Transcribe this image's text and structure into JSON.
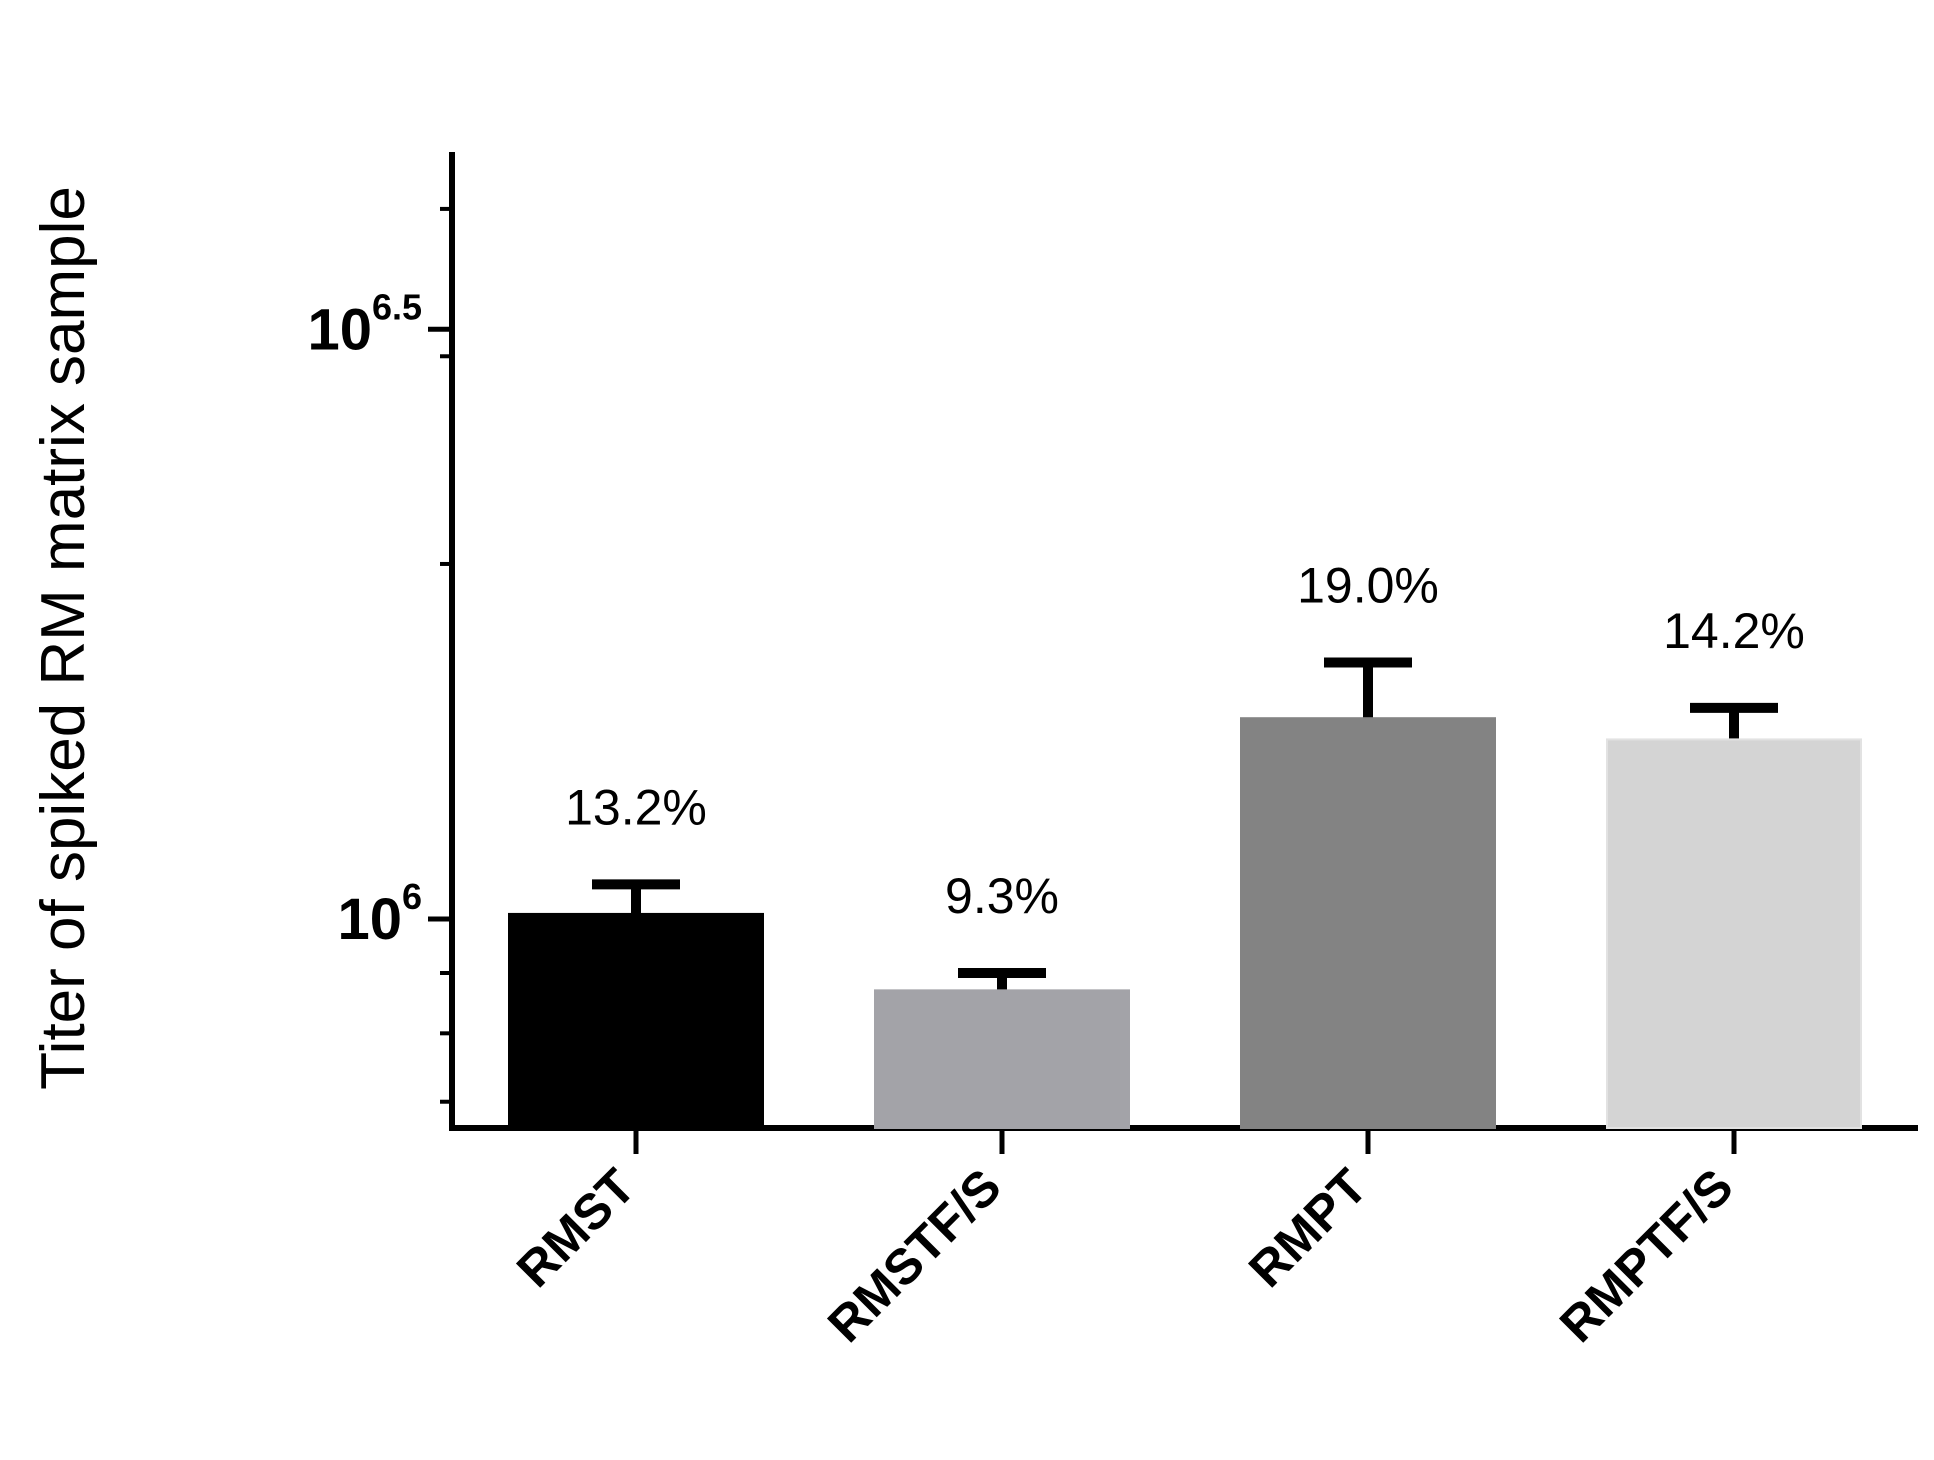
{
  "chart_data": {
    "type": "bar",
    "title": "",
    "ylabel": "Titer of spiked RM matrix sample",
    "xlabel": "",
    "y_scale": "log10",
    "ylim": [
      665000,
      4470000
    ],
    "y_ticks": [
      {
        "value": 1000000,
        "base": "10",
        "exponent": "6"
      },
      {
        "value": 3162278,
        "base": "10",
        "exponent": "6.5"
      }
    ],
    "categories": [
      "RMST",
      "RMSTF/S",
      "RMPT",
      "RMPTF/S"
    ],
    "values": [
      1010000,
      870000,
      1480000,
      1420000
    ],
    "error_upper": [
      1070000,
      900000,
      1650000,
      1510000
    ],
    "data_labels": [
      "13.2%",
      "9.3%",
      "19.0%",
      "14.2%"
    ],
    "colors": [
      "#000000",
      "#a3a3a8",
      "#838383",
      "#d4d4d4"
    ],
    "grid": false,
    "legend": false
  }
}
